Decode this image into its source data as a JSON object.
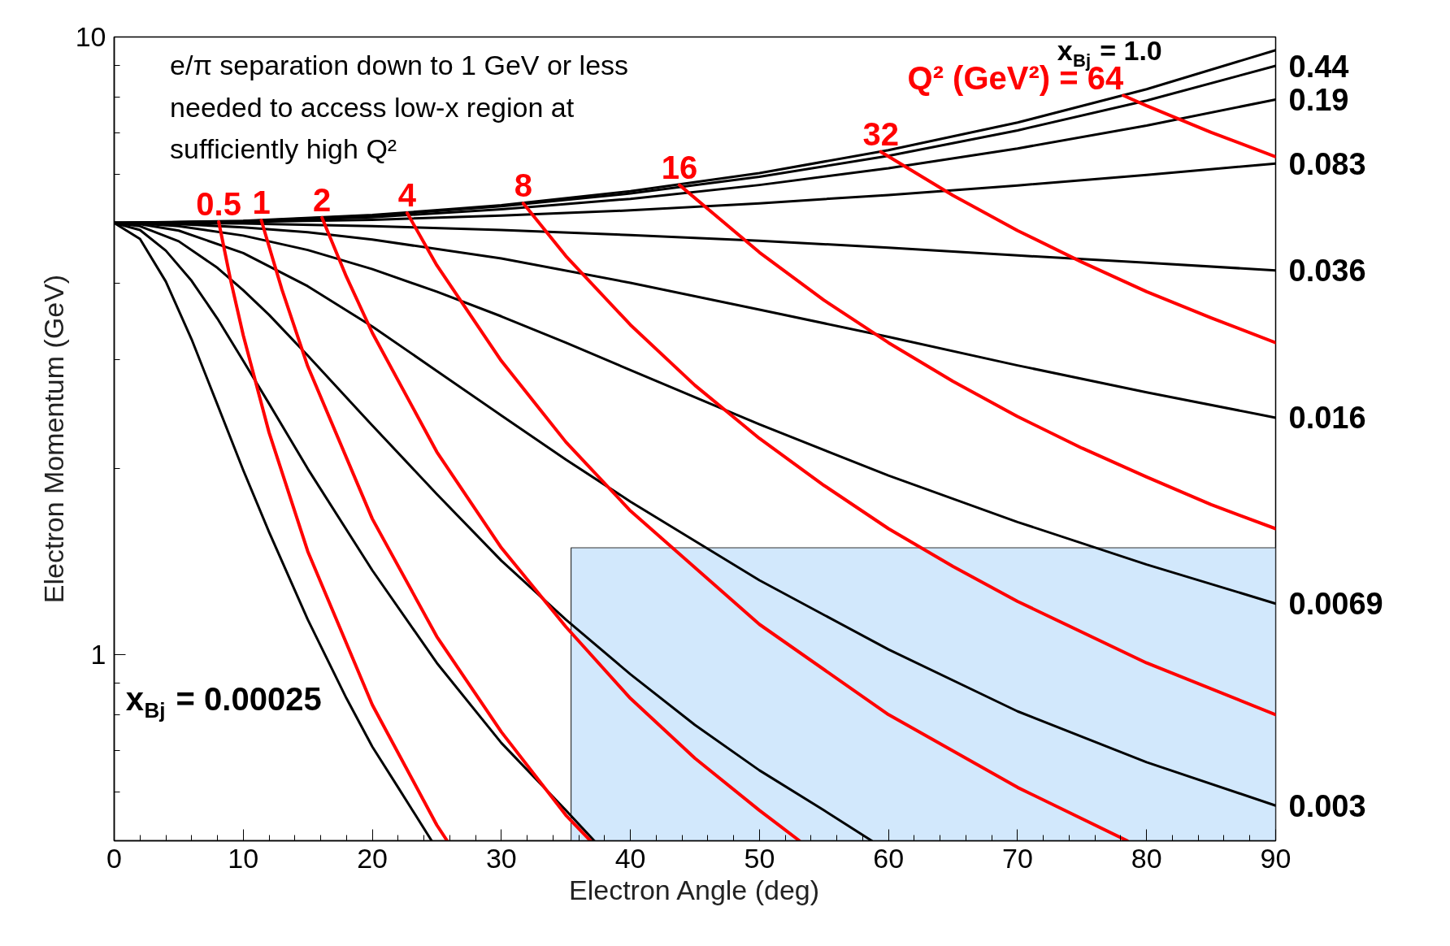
{
  "chart_data": {
    "type": "line",
    "xlabel": "Electron Angle (deg)",
    "ylabel": "Electron Momentum (GeV)",
    "annotations": [
      "e/π separation down to 1 GeV or less needed to access low-x region at sufficiently high Q²"
    ],
    "xlim": [
      0,
      90
    ],
    "ylim": [
      0.5,
      10
    ],
    "log": "y",
    "grid": false,
    "xticks": [
      0,
      {
        "value": 2,
        "label": null
      },
      {
        "value": 4,
        "label": null
      },
      {
        "value": 6,
        "label": null
      },
      {
        "value": 8,
        "label": null
      },
      10,
      {
        "value": 12,
        "label": null
      },
      {
        "value": 14,
        "label": null
      },
      {
        "value": 16,
        "label": null
      },
      {
        "value": 18,
        "label": null
      },
      20,
      {
        "value": 22,
        "label": null
      },
      {
        "value": 24,
        "label": null
      },
      {
        "value": 26,
        "label": null
      },
      {
        "value": 28,
        "label": null
      },
      30,
      {
        "value": 32,
        "label": null
      },
      {
        "value": 34,
        "label": null
      },
      {
        "value": 36,
        "label": null
      },
      {
        "value": 38,
        "label": null
      },
      40,
      {
        "value": 42,
        "label": null
      },
      {
        "value": 44,
        "label": null
      },
      {
        "value": 46,
        "label": null
      },
      {
        "value": 48,
        "label": null
      },
      50,
      {
        "value": 52,
        "label": null
      },
      {
        "value": 54,
        "label": null
      },
      {
        "value": 56,
        "label": null
      },
      {
        "value": 58,
        "label": null
      },
      60,
      {
        "value": 62,
        "label": null
      },
      {
        "value": 64,
        "label": null
      },
      {
        "value": 66,
        "label": null
      },
      {
        "value": 68,
        "label": null
      },
      70,
      {
        "value": 72,
        "label": null
      },
      {
        "value": 74,
        "label": null
      },
      {
        "value": 76,
        "label": null
      },
      {
        "value": 78,
        "label": null
      },
      80,
      {
        "value": 82,
        "label": null
      },
      {
        "value": 84,
        "label": null
      },
      {
        "value": 86,
        "label": null
      },
      {
        "value": 88,
        "label": null
      },
      90
    ],
    "yticks": [
      {
        "value": 0.6,
        "label": null
      },
      {
        "value": 0.7,
        "label": null
      },
      {
        "value": 0.8,
        "label": null
      },
      {
        "value": 0.9,
        "label": null
      },
      1,
      {
        "value": 2,
        "label": null
      },
      {
        "value": 3,
        "label": null
      },
      {
        "value": 4,
        "label": null
      },
      {
        "value": 5,
        "label": null
      },
      {
        "value": 6,
        "label": null
      },
      {
        "value": 7,
        "label": null
      },
      {
        "value": 8,
        "label": null
      },
      {
        "value": 9,
        "label": null
      },
      10
    ],
    "series": [
      {
        "name": "x$_{Bj}$ = 1.0",
        "color": "#000000",
        "x": [
          0,
          10,
          20,
          30,
          40,
          50,
          60,
          70,
          80,
          90
        ],
        "values": [
          5,
          5.04,
          5.15,
          5.34,
          5.63,
          6.02,
          6.56,
          7.27,
          8.23,
          9.52
        ]
      },
      {
        "name": "0.44",
        "color": "#000000",
        "x": [
          0,
          10,
          20,
          30,
          40,
          50,
          60,
          70,
          80,
          90
        ],
        "values": [
          5,
          5.03,
          5.14,
          5.32,
          5.58,
          5.94,
          6.42,
          7.06,
          7.89,
          8.98
        ]
      },
      {
        "name": "0.19",
        "color": "#000000",
        "x": [
          0,
          10,
          20,
          30,
          40,
          50,
          60,
          70,
          80,
          90
        ],
        "values": [
          5,
          5.03,
          5.11,
          5.26,
          5.47,
          5.76,
          6.13,
          6.6,
          7.19,
          7.92
        ]
      },
      {
        "name": "0.083",
        "color": "#000000",
        "x": [
          0,
          10,
          20,
          30,
          40,
          50,
          60,
          70,
          80,
          90
        ],
        "values": [
          5,
          5.02,
          5.06,
          5.14,
          5.24,
          5.38,
          5.55,
          5.75,
          5.98,
          6.24
        ]
      },
      {
        "name": "0.036",
        "color": "#000000",
        "x": [
          0,
          10,
          20,
          30,
          40,
          50,
          60,
          70,
          80,
          90
        ],
        "values": [
          5,
          4.99,
          4.94,
          4.87,
          4.78,
          4.68,
          4.56,
          4.43,
          4.31,
          4.19
        ]
      },
      {
        "name": "0.016",
        "color": "#000000",
        "x": [
          0,
          5,
          10,
          15,
          20,
          30,
          40,
          50,
          60,
          70,
          80,
          90
        ],
        "values": [
          5,
          4.98,
          4.92,
          4.83,
          4.7,
          4.38,
          4.0,
          3.62,
          3.27,
          2.94,
          2.66,
          2.42
        ]
      },
      {
        "name": "0.0069",
        "color": "#000000",
        "x": [
          0,
          2,
          5,
          10,
          15,
          20,
          25,
          30,
          35,
          40,
          50,
          60,
          70,
          80,
          90
        ],
        "values": [
          5,
          4.99,
          4.94,
          4.77,
          4.52,
          4.21,
          3.87,
          3.53,
          3.2,
          2.89,
          2.36,
          1.95,
          1.64,
          1.4,
          1.21
        ]
      },
      {
        "name": "0.003",
        "color": "#000000",
        "x": [
          0,
          2,
          5,
          10,
          15,
          20,
          25,
          30,
          35,
          40,
          50,
          60,
          70,
          80,
          90
        ],
        "values": [
          5,
          4.98,
          4.86,
          4.47,
          3.95,
          3.4,
          2.88,
          2.44,
          2.07,
          1.77,
          1.32,
          1.02,
          0.81,
          0.67,
          0.57
        ]
      },
      {
        "color": "#000000",
        "x": [
          0,
          2,
          5,
          8,
          10,
          12,
          15,
          20,
          25,
          30,
          35,
          40,
          45,
          50,
          55,
          58.7
        ],
        "values": [
          5,
          4.94,
          4.67,
          4.23,
          3.89,
          3.55,
          3.05,
          2.35,
          1.82,
          1.42,
          1.14,
          0.93,
          0.77,
          0.65,
          0.56,
          0.5
        ]
      },
      {
        "color": "#000000",
        "x": [
          0,
          2,
          4,
          6,
          8,
          10,
          12,
          15,
          20,
          25,
          30,
          35,
          37.2
        ],
        "values": [
          5,
          4.87,
          4.51,
          4.03,
          3.5,
          2.99,
          2.55,
          2.0,
          1.37,
          0.97,
          0.72,
          0.56,
          0.5
        ]
      },
      {
        "name": "x$_{Bj}$ = 0.00025",
        "color": "#000000",
        "x": [
          0,
          2,
          4,
          6,
          8,
          10,
          12,
          15,
          18,
          20,
          22,
          24.6
        ],
        "values": [
          5,
          4.71,
          4.02,
          3.24,
          2.54,
          1.99,
          1.58,
          1.14,
          0.85,
          0.71,
          0.61,
          0.5
        ]
      },
      {
        "name": "0.5",
        "color": "#ff0000",
        "x": [
          8.1,
          9,
          10,
          12,
          15,
          20,
          25,
          25.8
        ],
        "values": [
          5.02,
          4.06,
          3.29,
          2.29,
          1.47,
          0.83,
          0.53,
          0.5
        ]
      },
      {
        "name": "1",
        "color": "#ff0000",
        "x": [
          11.4,
          12,
          13,
          15,
          20,
          25,
          30,
          35,
          36.9
        ],
        "values": [
          5.05,
          4.58,
          3.9,
          2.93,
          1.66,
          1.07,
          0.75,
          0.55,
          0.5
        ]
      },
      {
        "name": "2",
        "color": "#ff0000",
        "x": [
          16.1,
          18,
          20,
          25,
          30,
          35,
          40,
          45,
          50,
          53.1
        ],
        "values": [
          5.1,
          4.09,
          3.32,
          2.13,
          1.49,
          1.11,
          0.85,
          0.68,
          0.56,
          0.5
        ]
      },
      {
        "name": "4",
        "color": "#ff0000",
        "x": [
          22.7,
          25,
          30,
          35,
          40,
          50,
          60,
          70,
          78.5
        ],
        "values": [
          5.19,
          4.27,
          2.99,
          2.21,
          1.71,
          1.12,
          0.8,
          0.61,
          0.5
        ]
      },
      {
        "name": "8",
        "color": "#ff0000",
        "x": [
          31.7,
          35,
          40,
          45,
          50,
          55,
          60,
          65,
          70,
          80,
          90
        ],
        "values": [
          5.38,
          4.42,
          3.42,
          2.73,
          2.24,
          1.88,
          1.6,
          1.39,
          1.22,
          0.97,
          0.8
        ]
      },
      {
        "name": "16",
        "color": "#ff0000",
        "x": [
          43.8,
          50,
          55,
          60,
          65,
          70,
          75,
          80,
          85,
          90
        ],
        "values": [
          5.76,
          4.48,
          3.75,
          3.2,
          2.77,
          2.43,
          2.16,
          1.94,
          1.75,
          1.6
        ]
      },
      {
        "name": "32",
        "color": "#ff0000",
        "x": [
          59.4,
          65,
          70,
          75,
          80,
          85,
          90
        ],
        "values": [
          6.52,
          5.54,
          4.86,
          4.32,
          3.87,
          3.51,
          3.2
        ]
      },
      {
        "name": "Q² (GeV²) = 64",
        "color": "#ff0000",
        "x": [
          78.2,
          80,
          85,
          90
        ],
        "values": [
          8.04,
          7.74,
          7.01,
          6.4
        ]
      },
      {
        "type": "area",
        "color": "#c5e1fb",
        "x": [
          35.4,
          90
        ],
        "values": [
          1.49,
          1.49
        ]
      }
    ]
  }
}
